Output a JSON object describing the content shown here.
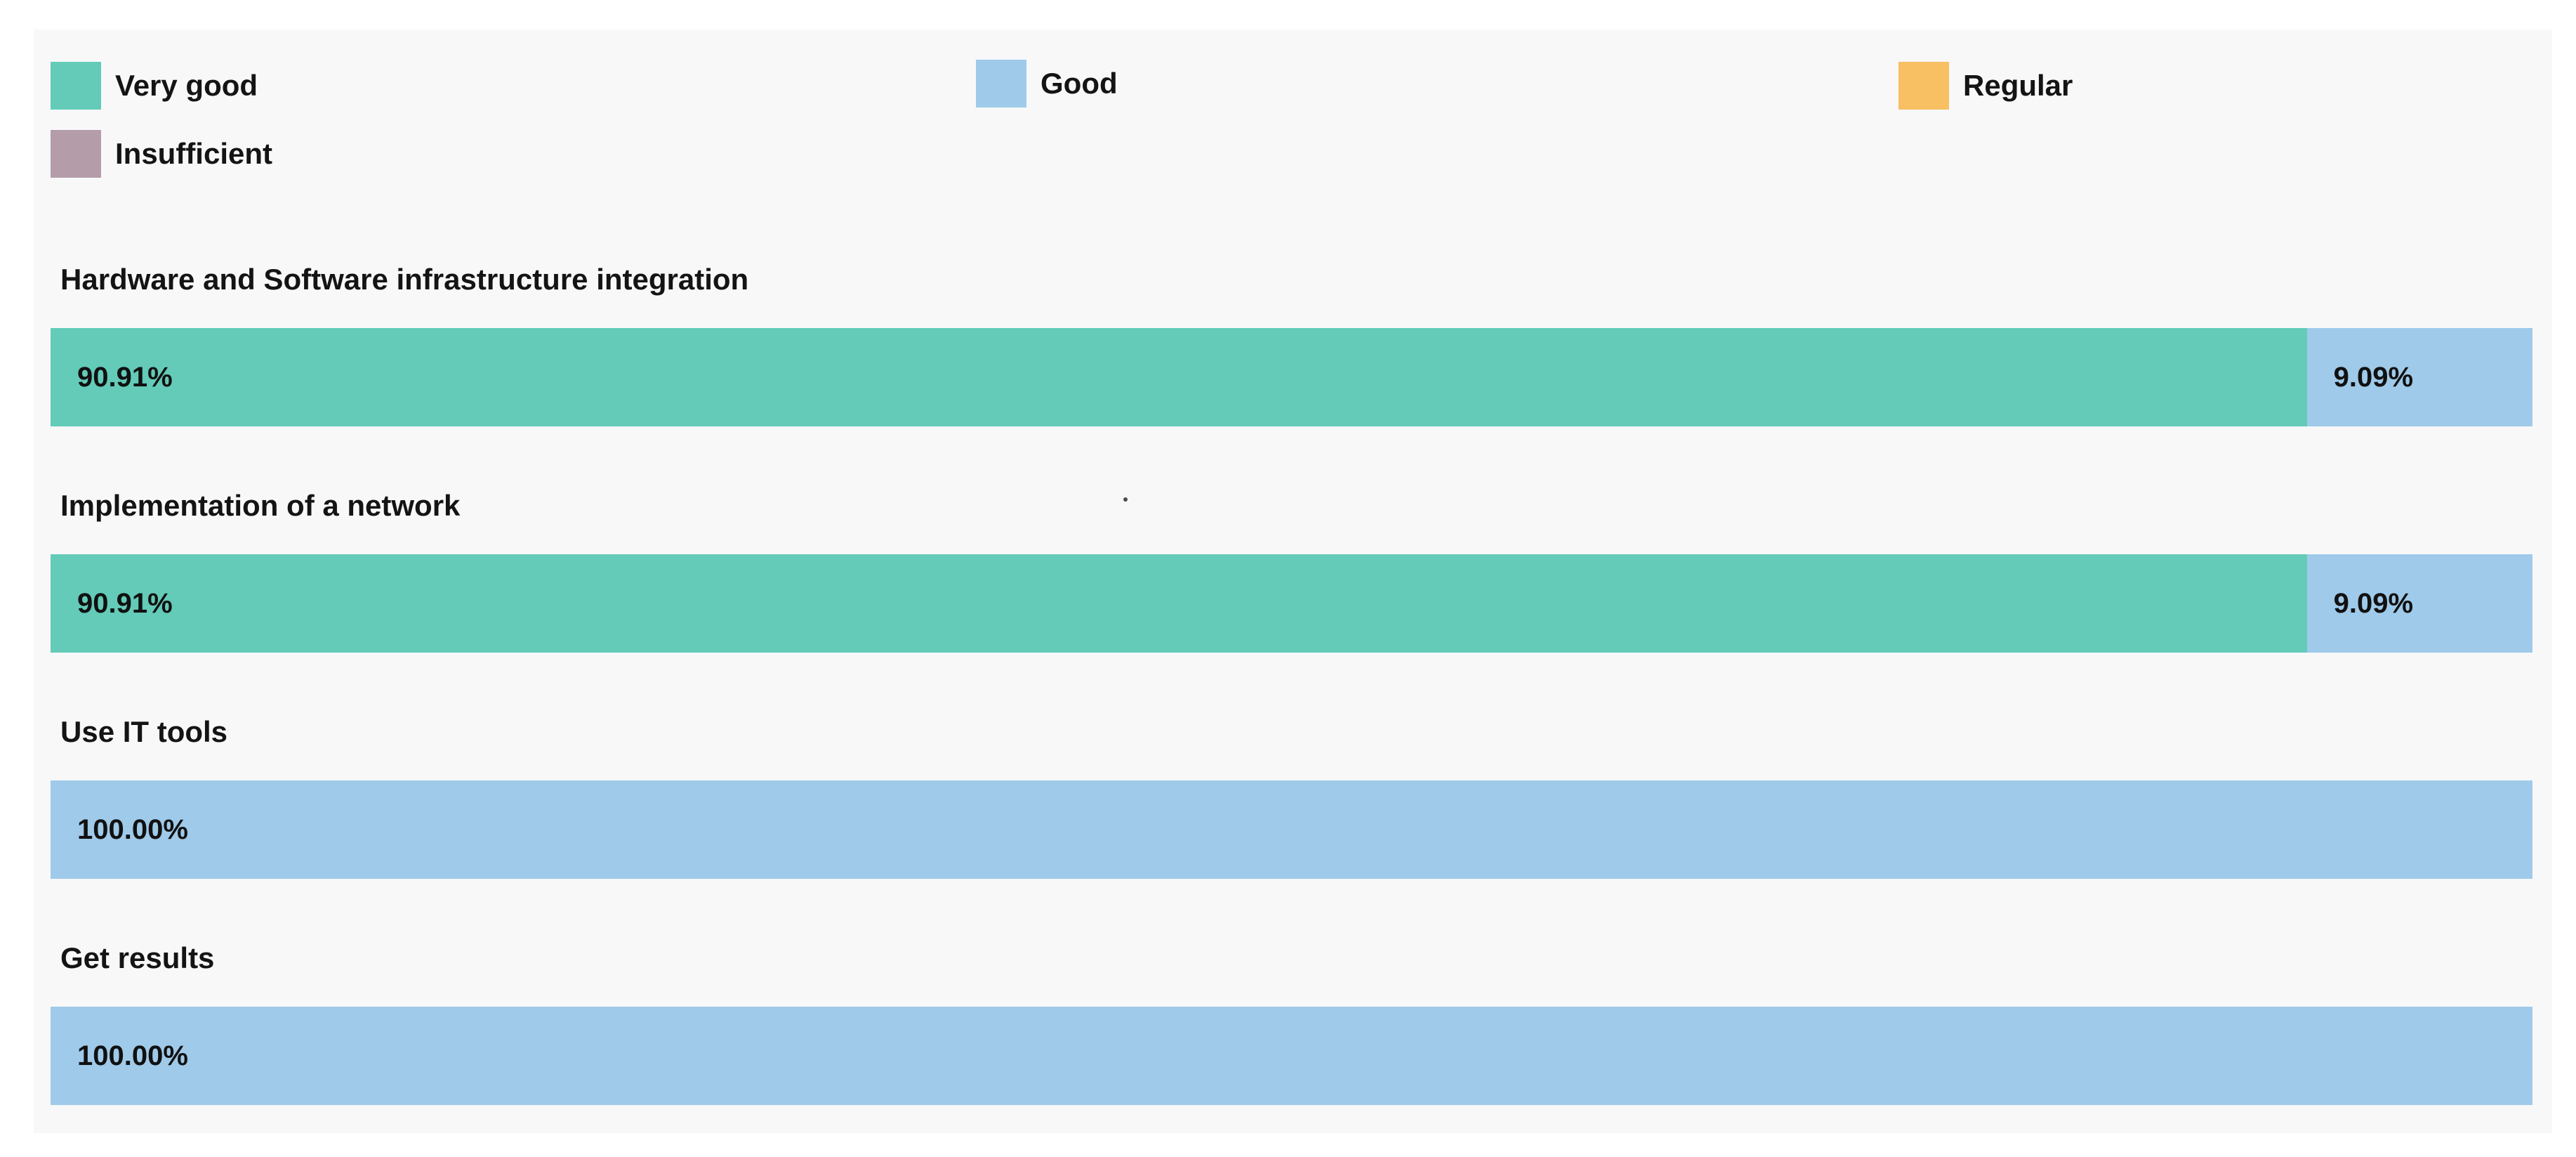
{
  "page": {
    "background": "#ffffff",
    "panel_background": "#f8f8f9",
    "text_color": "#141414"
  },
  "legend": {
    "items": [
      {
        "label": "Very good",
        "color": "#63cbb8"
      },
      {
        "label": "Good",
        "color": "#9fcae9"
      },
      {
        "label": "Regular",
        "color": "#f8bf63"
      },
      {
        "label": "Insufficient",
        "color": "#b49ca9"
      }
    ]
  },
  "chart_data": {
    "type": "bar",
    "orientation": "horizontal",
    "stacked": true,
    "unit": "percent",
    "xlim": [
      0,
      100
    ],
    "grid": false,
    "legend_position": "top",
    "categories": [
      "Hardware and Software infrastructure integration",
      "Implementation of a network",
      "Use IT tools",
      "Get results"
    ],
    "series": [
      {
        "name": "Very good",
        "color": "#63cbb8",
        "values": [
          90.91,
          90.91,
          0,
          0
        ]
      },
      {
        "name": "Good",
        "color": "#9fcae9",
        "values": [
          9.09,
          9.09,
          100,
          100
        ]
      },
      {
        "name": "Regular",
        "color": "#f8bf63",
        "values": [
          0,
          0,
          0,
          0
        ]
      },
      {
        "name": "Insufficient",
        "color": "#b49ca9",
        "values": [
          0,
          0,
          0,
          0
        ]
      }
    ],
    "rows": [
      {
        "title": "Hardware and Software infrastructure integration",
        "segments": [
          {
            "series": "Very good",
            "value": 90.91,
            "label": "90.91%",
            "color": "#63cbb8"
          },
          {
            "series": "Good",
            "value": 9.09,
            "label": "9.09%",
            "color": "#9fcae9"
          }
        ]
      },
      {
        "title": "Implementation of a network",
        "segments": [
          {
            "series": "Very good",
            "value": 90.91,
            "label": "90.91%",
            "color": "#63cbb8"
          },
          {
            "series": "Good",
            "value": 9.09,
            "label": "9.09%",
            "color": "#9fcae9"
          }
        ]
      },
      {
        "title": "Use IT tools",
        "segments": [
          {
            "series": "Good",
            "value": 100,
            "label": "100.00%",
            "color": "#9fcae9"
          }
        ]
      },
      {
        "title": "Get results",
        "segments": [
          {
            "series": "Good",
            "value": 100,
            "label": "100.00%",
            "color": "#9fcae9"
          }
        ]
      }
    ]
  }
}
